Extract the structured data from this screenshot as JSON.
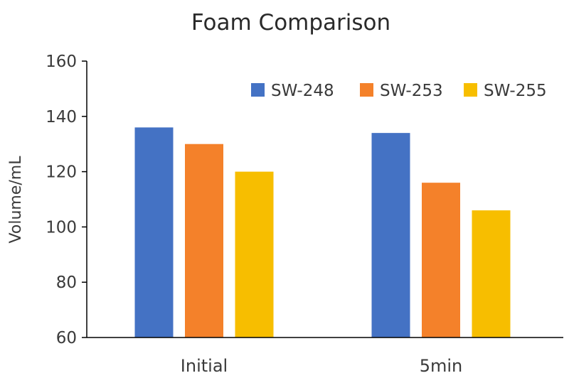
{
  "chart_data": {
    "type": "bar",
    "title": "Foam Comparison",
    "xlabel": "",
    "ylabel": "Volume/mL",
    "ylim": [
      60,
      160
    ],
    "yticks": [
      60,
      80,
      100,
      120,
      140,
      160
    ],
    "grid": false,
    "legend_position": "top-right",
    "categories": [
      "Initial",
      "5min"
    ],
    "series": [
      {
        "name": "SW-248",
        "color": "#4472C4",
        "values": [
          136,
          134
        ]
      },
      {
        "name": "SW-253",
        "color": "#F4812A",
        "values": [
          130,
          116
        ]
      },
      {
        "name": "SW-255",
        "color": "#F7BE00",
        "values": [
          120,
          106
        ]
      }
    ]
  }
}
